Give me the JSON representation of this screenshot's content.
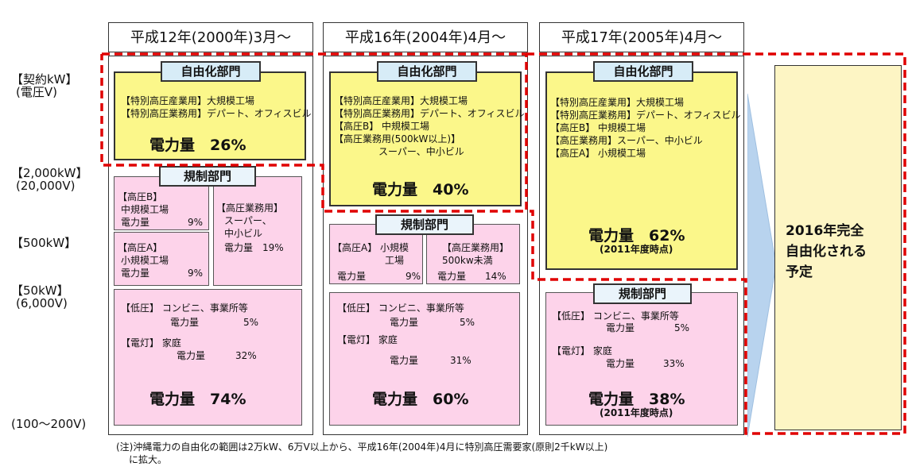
{
  "columns": [
    {
      "header": "平成12年(2000年)3月～"
    },
    {
      "header": "平成16年(2004年)4月～"
    },
    {
      "header": "平成17年(2005年)4月～"
    }
  ],
  "y_labels": {
    "contract": "【契約kW】",
    "voltage": "(電圧V)",
    "l2000kw": "【2,000kW】",
    "l20000v": "(20,000V)",
    "l500kw": "【500kW】",
    "l50kw": "【50kW】",
    "l6000v": "(6,000V)",
    "l100v": "(100～200V)"
  },
  "col1": {
    "lib_title": "自由化部門",
    "lib_lines": [
      "【特別高圧産業用】大規模工場",
      "【特別高圧業務用】デパート、オフィスビル"
    ],
    "lib_power": "電力量　26%",
    "reg_title": "規制部門",
    "hb_label": "【高圧B】",
    "hb_line1": "中規模工場",
    "hb_line2": "電力量",
    "hb_pct": "9%",
    "hg_label": "【高圧業務用】",
    "hg_line1": "スーパー、",
    "hg_line2": "中小ビル",
    "hg_line3": "電力量　19%",
    "ha_label": "【高圧A】",
    "ha_line1": "小規模工場",
    "ha_line2": "電力量",
    "ha_pct": "9%",
    "low_line1": "【低圧】 コンビニ、事業所等",
    "low_line2": "電力量",
    "low_pct": "5%",
    "light_line1": "【電灯】 家庭",
    "light_line2": "電力量",
    "light_pct": "32%",
    "reg_power": "電力量　74%"
  },
  "col2": {
    "lib_title": "自由化部門",
    "lib_lines": [
      "【特別高圧産業用】大規模工場",
      "【特別高圧業務用】デパート、オフィスビル",
      "【高圧B】 中規模工場",
      "【高圧業務用(500kW以上)】",
      "スーパー、中小ビル"
    ],
    "lib_power": "電力量　40%",
    "reg_title": "規制部門",
    "ha_line1": "【高圧A】 小規模",
    "ha_line2": "工場",
    "ha_line3": "電力量",
    "ha_pct": "9%",
    "hg_line1": "【高圧業務用】",
    "hg_line2": "500kw未満",
    "hg_line3": "電力量　　14%",
    "low_line1": "【低圧】 コンビニ、事業所等",
    "low_line2": "電力量",
    "low_pct": "5%",
    "light_line1": "【電灯】 家庭",
    "light_line2": "電力量",
    "light_pct": "31%",
    "reg_power": "電力量　60%"
  },
  "col3": {
    "lib_title": "自由化部門",
    "lib_lines": [
      "【特別高圧産業用】大規模工場",
      "【特別高圧業務用】デパート、オフィスビル",
      "【高圧B】 中規模工場",
      "【高圧業務用】スーパー、中小ビル",
      "【高圧A】 小規模工場"
    ],
    "lib_power": "電力量　62%",
    "lib_note": "(2011年度時点)",
    "reg_title": "規制部門",
    "low_line1": "【低圧】 コンビニ、事業所等",
    "low_line2": "電力量",
    "low_pct": "5%",
    "light_line1": "【電灯】 家庭",
    "light_line2": "電力量",
    "light_pct": "33%",
    "reg_power": "電力量　38%",
    "reg_note": "(2011年度時点)"
  },
  "future": {
    "line1": "2016年完全",
    "line2": "自由化される",
    "line3": "予定"
  },
  "footnote": {
    "line1": "(注)沖縄電力の自由化の範囲は2万kW、6万V以上から、平成16年(2004年)4月に特別高圧需要家(原則2千kW以上)",
    "line2": "に拡大。"
  },
  "colors": {
    "liberalized": "#fbf78a",
    "regulated": "#fdd3ea",
    "dashed_border": "#e00000",
    "arrow": "#b8d3ee"
  }
}
